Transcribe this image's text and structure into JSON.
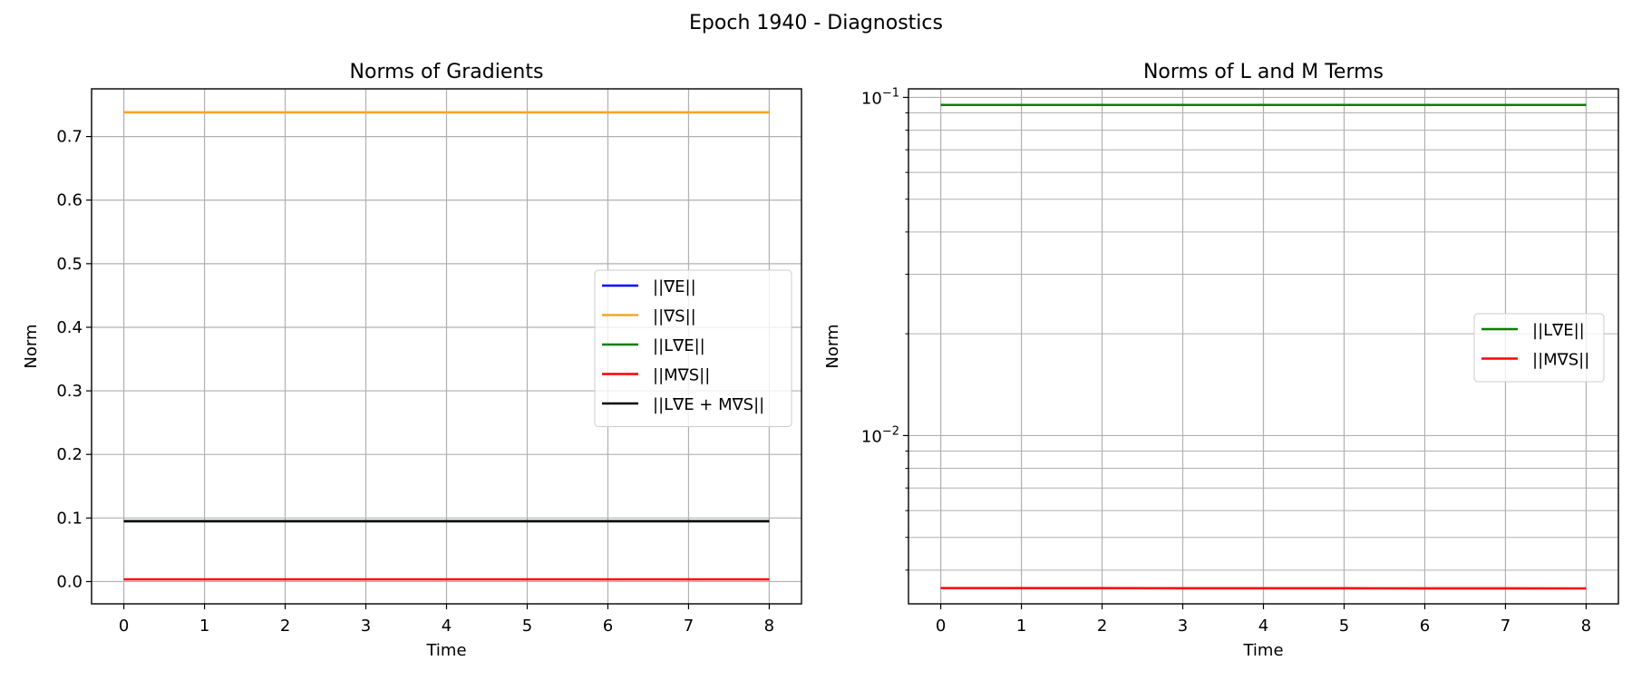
{
  "figure": {
    "suptitle": "Epoch 1940 - Diagnostics"
  },
  "chart_data": [
    {
      "type": "line",
      "title": "Norms of Gradients",
      "xlabel": "Time",
      "ylabel": "Norm",
      "yscale": "linear",
      "xlim": [
        -0.4,
        8.4
      ],
      "ylim": [
        -0.035,
        0.775
      ],
      "xticks": [
        0,
        1,
        2,
        3,
        4,
        5,
        6,
        7,
        8
      ],
      "yticks": [
        0.0,
        0.1,
        0.2,
        0.3,
        0.4,
        0.5,
        0.6,
        0.7
      ],
      "ytick_labels": [
        "0.0",
        "0.1",
        "0.2",
        "0.3",
        "0.4",
        "0.5",
        "0.6",
        "0.7"
      ],
      "grid": true,
      "legend_position": "center-right",
      "x": [
        0,
        1,
        2,
        3,
        4,
        5,
        6,
        7,
        8
      ],
      "series": [
        {
          "name": "||∇E||",
          "color": "#0000ff",
          "values": [
            0.095,
            0.095,
            0.095,
            0.095,
            0.095,
            0.095,
            0.095,
            0.095,
            0.095
          ]
        },
        {
          "name": "||∇S||",
          "color": "#f5a623",
          "values": [
            0.738,
            0.738,
            0.738,
            0.738,
            0.738,
            0.738,
            0.738,
            0.738,
            0.738
          ]
        },
        {
          "name": "||L∇E||",
          "color": "#008000",
          "values": [
            0.095,
            0.095,
            0.095,
            0.095,
            0.095,
            0.095,
            0.095,
            0.095,
            0.095
          ]
        },
        {
          "name": "||M∇S||",
          "color": "#ff0000",
          "values": [
            0.0035,
            0.0035,
            0.0035,
            0.0035,
            0.0035,
            0.0035,
            0.0035,
            0.0035,
            0.0035
          ]
        },
        {
          "name": "||L∇E + M∇S||",
          "color": "#000000",
          "values": [
            0.095,
            0.095,
            0.095,
            0.095,
            0.095,
            0.095,
            0.095,
            0.095,
            0.095
          ]
        }
      ]
    },
    {
      "type": "line",
      "title": "Norms of L and M Terms",
      "xlabel": "Time",
      "ylabel": "Norm",
      "yscale": "log",
      "xlim": [
        -0.4,
        8.4
      ],
      "ylim": [
        0.00318,
        0.106
      ],
      "xticks": [
        0,
        1,
        2,
        3,
        4,
        5,
        6,
        7,
        8
      ],
      "ytick_major": [
        0.01,
        0.1
      ],
      "ytick_labels": [
        {
          "base": "10",
          "exp": "−2"
        },
        {
          "base": "10",
          "exp": "−1"
        }
      ],
      "grid": true,
      "legend_position": "center-right",
      "x": [
        0,
        1,
        2,
        3,
        4,
        5,
        6,
        7,
        8
      ],
      "series": [
        {
          "name": "||L∇E||",
          "color": "#008000",
          "values": [
            0.095,
            0.095,
            0.095,
            0.095,
            0.095,
            0.095,
            0.095,
            0.095,
            0.095
          ]
        },
        {
          "name": "||M∇S||",
          "color": "#ff0000",
          "values": [
            0.00354,
            0.00354,
            0.003538,
            0.003537,
            0.003536,
            0.003535,
            0.003534,
            0.003533,
            0.003532
          ]
        }
      ]
    }
  ]
}
